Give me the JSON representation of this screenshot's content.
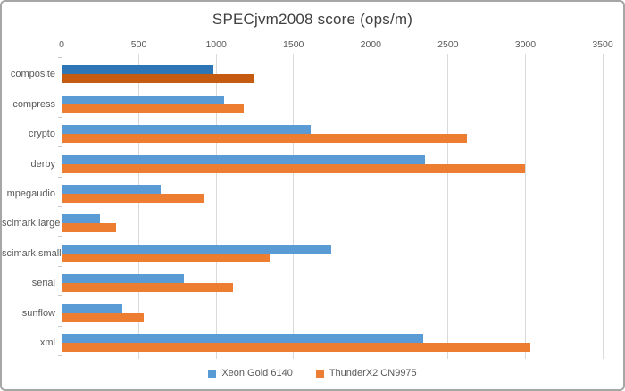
{
  "window": {
    "background": "#ffffff",
    "border_color": "#a6a6a6"
  },
  "chart_data": {
    "type": "bar",
    "orientation": "horizontal",
    "title": "SPECjvm2008 score (ops/m)",
    "categories": [
      "composite",
      "compress",
      "crypto",
      "derby",
      "mpegaudio",
      "scimark.large",
      "scimark.small",
      "serial",
      "sunflow",
      "xml"
    ],
    "series": [
      {
        "name": "Xeon Gold 6140",
        "color": "#5B9BD5",
        "highlight_color": "#2E75B6",
        "values": [
          980,
          1050,
          1610,
          2350,
          640,
          250,
          1745,
          790,
          390,
          2340
        ]
      },
      {
        "name": "ThunderX2 CN9975",
        "color": "#ED7D31",
        "highlight_color": "#C55A11",
        "values": [
          1250,
          1180,
          2620,
          3000,
          925,
          350,
          1345,
          1110,
          530,
          3030
        ]
      }
    ],
    "highlighted_category": "composite",
    "highlighted_index": 0,
    "x_ticks": [
      0,
      500,
      1000,
      1500,
      2000,
      2500,
      3000,
      3500
    ],
    "xlim": [
      0,
      3500
    ],
    "grid": true,
    "legend_position": "bottom",
    "gridline_color": "#d9d9d9",
    "axis_text_color": "#595959",
    "title_color": "#404040"
  }
}
